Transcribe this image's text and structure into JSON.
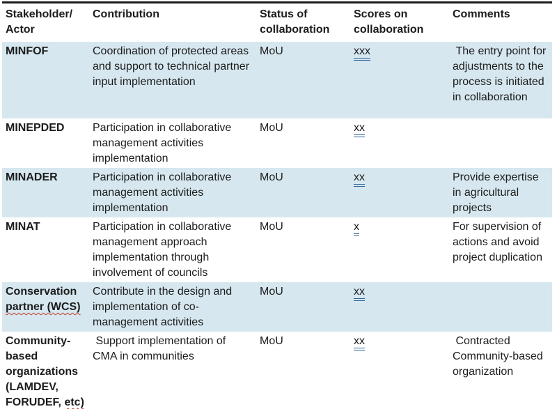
{
  "table": {
    "headers": [
      "Stakeholder/ Actor",
      "Contribution",
      "Status of collaboration",
      "Scores on collaboration",
      "Comments"
    ],
    "rows": [
      {
        "stakeholder": "MINFOF",
        "contribution": "Coordination of protected areas and support to technical partner input implementation",
        "status": "MoU",
        "score": "xxx",
        "comments": " The entry point for adjustments to the process is initiated in collaboration"
      },
      {
        "stakeholder": "MINEPDED",
        "contribution": "Participation in collaborative management activities implementation",
        "status": "MoU",
        "score": "xx",
        "comments": ""
      },
      {
        "stakeholder": "MINADER",
        "contribution": "Participation in collaborative management activities implementation",
        "status": "MoU",
        "score": "xx",
        "comments": "Provide expertise in agricultural projects"
      },
      {
        "stakeholder": "MINAT",
        "contribution": "Participation in collaborative management approach implementation through involvement of councils",
        "status": "MoU",
        "score": "x",
        "comments": "For supervision of actions and avoid project duplication"
      },
      {
        "stakeholder": "Conservation ",
        "stakeholder_flagged": "partner (WCS)",
        "contribution": "Contribute in the design and implementation of co-management activities",
        "status": "MoU",
        "score": "xx",
        "comments": ""
      },
      {
        "stakeholder": "Community-based organizations (LAMDEV, FORUDEF, ",
        "stakeholder_flagged": "etc)",
        "contribution": " Support implementation of CMA in communities",
        "status": "MoU",
        "score": "xx",
        "comments": " Contracted Community-based organization"
      }
    ]
  },
  "colors": {
    "row_shading": "#d6e7ef",
    "top_border": "#1a1a1a",
    "header_rule": "#6e6e6e",
    "bottom_rule": "#8aaab8",
    "score_underline": "#2e6093",
    "spellcheck_squiggle": "#c43b2a",
    "text": "#1c1c1c"
  }
}
